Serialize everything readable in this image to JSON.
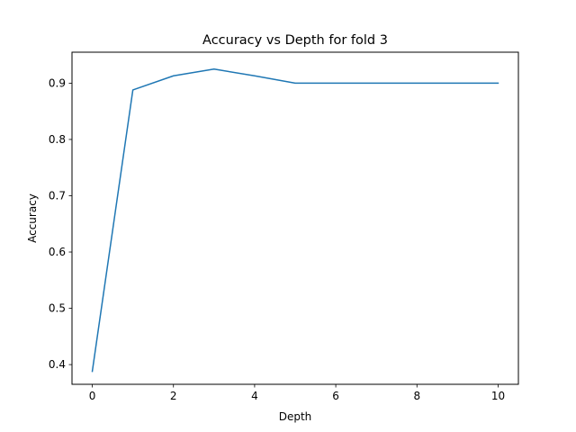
{
  "chart_data": {
    "type": "line",
    "title": "Accuracy vs Depth for fold 3",
    "xlabel": "Depth",
    "ylabel": "Accuracy",
    "xlim": [
      -0.5,
      10.5
    ],
    "ylim": [
      0.365,
      0.955
    ],
    "xticks": [
      0,
      2,
      4,
      6,
      8,
      10
    ],
    "xtick_labels": [
      "0",
      "2",
      "4",
      "6",
      "8",
      "10"
    ],
    "yticks": [
      0.4,
      0.5,
      0.6,
      0.7,
      0.8,
      0.9
    ],
    "ytick_labels": [
      "0.4",
      "0.5",
      "0.6",
      "0.7",
      "0.8",
      "0.9"
    ],
    "grid": false,
    "series": [
      {
        "color": "#1f77b4",
        "x": [
          0,
          1,
          2,
          3,
          4,
          5,
          6,
          7,
          8,
          9,
          10
        ],
        "y": [
          0.388,
          0.888,
          0.913,
          0.925,
          0.913,
          0.9,
          0.9,
          0.9,
          0.9,
          0.9,
          0.9
        ]
      }
    ]
  }
}
